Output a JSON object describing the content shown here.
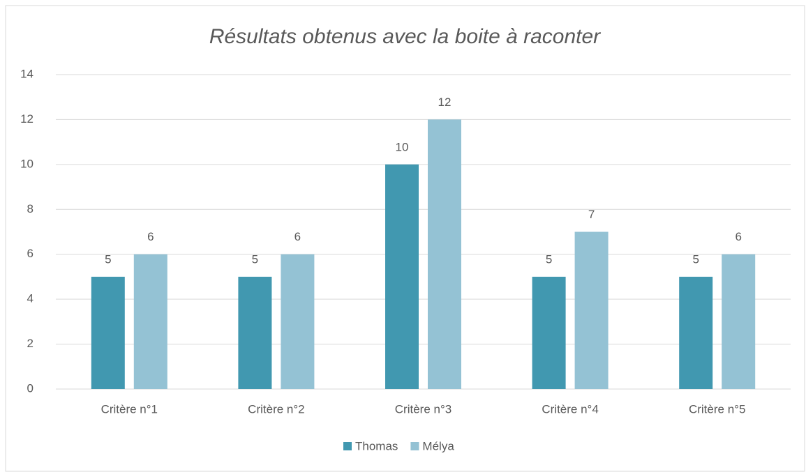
{
  "chart_data": {
    "type": "bar",
    "title": "Résultats obtenus avec la boite à raconter",
    "categories": [
      "Critère n°1",
      "Critère n°2",
      "Critère n°3",
      "Critère n°4",
      "Critère n°5"
    ],
    "series": [
      {
        "name": "Thomas",
        "color": "#4198b0",
        "values": [
          5,
          5,
          10,
          5,
          5
        ]
      },
      {
        "name": "Mélya",
        "color": "#94c2d4",
        "values": [
          6,
          6,
          12,
          7,
          6
        ]
      }
    ],
    "ylim": [
      0,
      14
    ],
    "yticks": [
      0,
      2,
      4,
      6,
      8,
      10,
      12,
      14
    ],
    "grid": true,
    "legend": "bottom"
  }
}
